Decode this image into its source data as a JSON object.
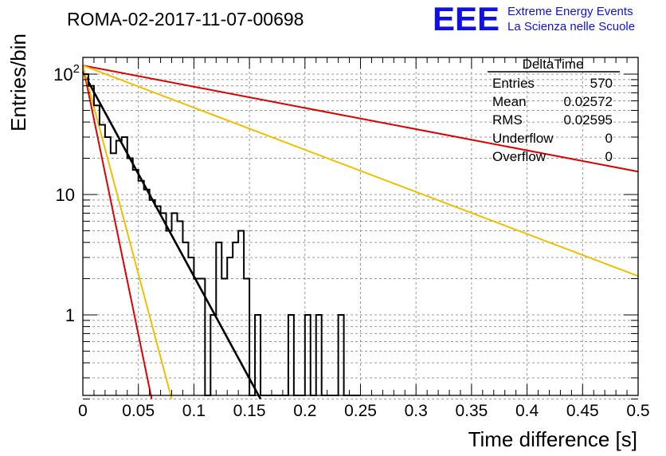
{
  "header": {
    "run_title": "ROMA-02-2017-11-07-00698",
    "logo_text": "EEE",
    "logo_line1": "Extreme Energy Events",
    "logo_line2": "La Scienza nelle Scuole",
    "logo_color": "#1010e0"
  },
  "stats_box": {
    "title": "DeltaTime",
    "rows": [
      {
        "label": "Entries",
        "value": "570"
      },
      {
        "label": "Mean",
        "value": "0.02572"
      },
      {
        "label": "RMS",
        "value": "0.02595"
      },
      {
        "label": "Underflow",
        "value": "0"
      },
      {
        "label": "Overflow",
        "value": "0"
      }
    ]
  },
  "chart_data": {
    "type": "line",
    "title": "ROMA-02-2017-11-07-00698",
    "xlabel": "Time difference [s]",
    "ylabel": "Entries/bin",
    "xlim": [
      0,
      0.5
    ],
    "ylim": [
      0.2,
      150
    ],
    "y_scale": "log",
    "grid": true,
    "x_ticks": [
      "0",
      "0.05",
      "0.1",
      "0.15",
      "0.2",
      "0.25",
      "0.3",
      "0.35",
      "0.4",
      "0.45",
      "0.5"
    ],
    "y_tick_labels": [
      {
        "base": "10",
        "exp": "2",
        "value": 100
      },
      {
        "base": "10",
        "exp": "",
        "value": 10
      },
      {
        "base": "1",
        "exp": "",
        "value": 1
      }
    ],
    "histogram": {
      "name": "DeltaTime",
      "bin_width": 0.005,
      "x_start": 0.0,
      "color": "#000000",
      "values": [
        100,
        80,
        55,
        38,
        30,
        22,
        28,
        30,
        20,
        16,
        13,
        11,
        9,
        8,
        7,
        5,
        7,
        6,
        4,
        3,
        2,
        2,
        0.1,
        1,
        4,
        2,
        3,
        4,
        5,
        2,
        0.1,
        1,
        0.1,
        0.1,
        0.1,
        0.1,
        0.1,
        1,
        0.1,
        0.1,
        1,
        0.1,
        1,
        0.1,
        0.1,
        0.1,
        1,
        0.1,
        0.1,
        0.1
      ]
    },
    "fits": [
      {
        "color": "#000000",
        "x": [
          0.0,
          0.16
        ],
        "y": [
          105,
          0.2
        ]
      },
      {
        "color": "#dd0000",
        "x": [
          0.0,
          0.5
        ],
        "y": [
          118,
          15.5
        ]
      },
      {
        "color": "#f0c000",
        "x": [
          0.0,
          0.5
        ],
        "y": [
          118,
          2.1
        ]
      },
      {
        "color": "#dd0000",
        "x": [
          0.0,
          0.062
        ],
        "y": [
          118,
          0.2
        ]
      },
      {
        "color": "#f0c000",
        "x": [
          0.0,
          0.08
        ],
        "y": [
          118,
          0.2
        ]
      }
    ]
  }
}
